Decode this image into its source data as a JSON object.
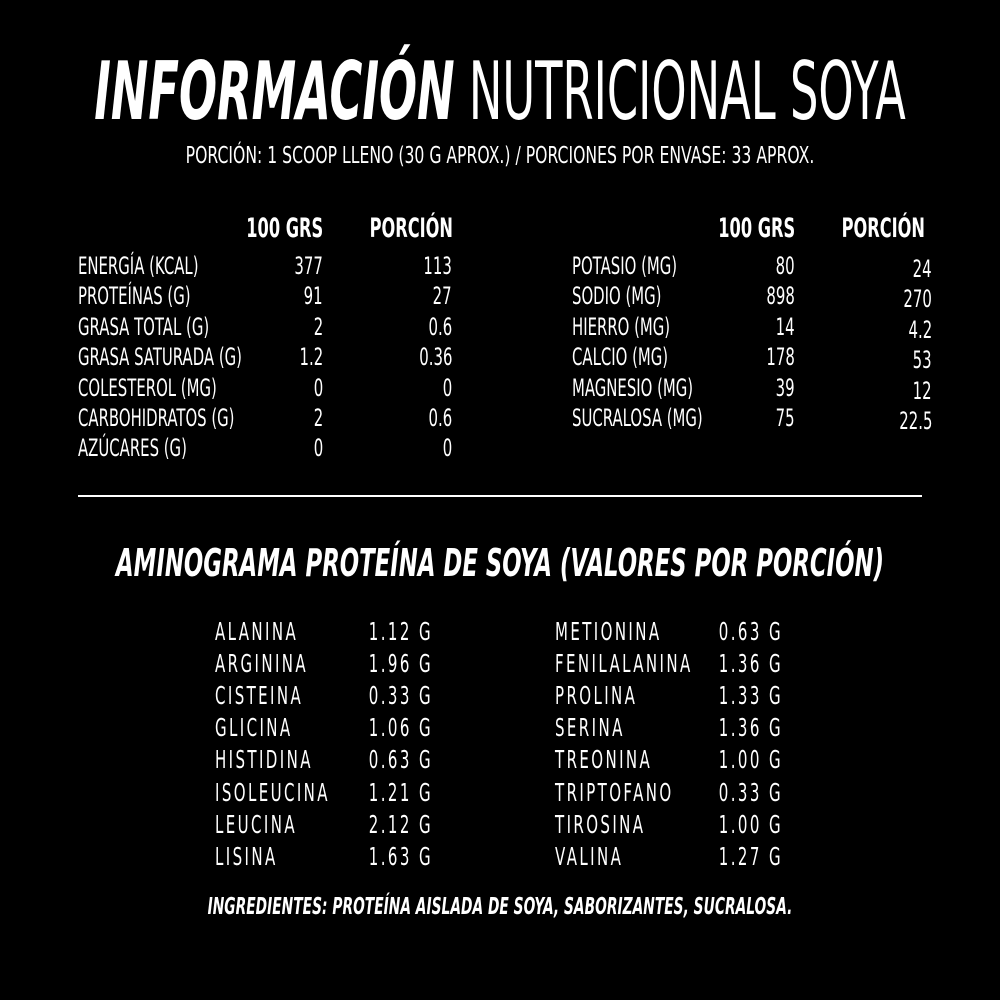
{
  "header": {
    "title_bold": "INFORMACIÓN",
    "title_rest": "NUTRICIONAL SOYA",
    "serving": "PORCIÓN: 1 SCOOP LLENO (30 G APROX.)  / PORCIONES POR ENVASE: 33 APROX."
  },
  "table_left": {
    "headers": [
      "100 GRS",
      "PORCIÓN"
    ],
    "rows": [
      [
        "ENERGÍA (KCAL)",
        "377",
        "113"
      ],
      [
        "PROTEÍNAS (G)",
        "91",
        "27"
      ],
      [
        "GRASA TOTAL (G)",
        "2",
        "0.6"
      ],
      [
        "GRASA SATURADA (G)",
        "1.2",
        "0.36"
      ],
      [
        "COLESTEROL (MG)",
        "0",
        "0"
      ],
      [
        "CARBOHIDRATOS (G)",
        "2",
        "0.6"
      ],
      [
        "AZÚCARES (G)",
        "0",
        "0"
      ]
    ]
  },
  "table_right": {
    "headers": [
      "100 GRS",
      "PORCIÓN"
    ],
    "rows": [
      [
        "POTASIO (MG)",
        "80",
        "24"
      ],
      [
        "SODIO (MG)",
        "898",
        "270"
      ],
      [
        "HIERRO (MG)",
        "14",
        "4.2"
      ],
      [
        "CALCIO (MG)",
        "178",
        "53"
      ],
      [
        "MAGNESIO (MG)",
        "39",
        "12"
      ],
      [
        "SUCRALOSA (MG)",
        "75",
        "22.5"
      ]
    ]
  },
  "aminogram": {
    "title": "AMINOGRAMA PROTEÍNA DE SOYA (VALORES POR PORCIÓN)",
    "left": [
      [
        "ALANINA",
        "1.12 G"
      ],
      [
        "ARGININA",
        "1.96 G"
      ],
      [
        "CISTEINA",
        "0.33 G"
      ],
      [
        "GLICINA",
        "1.06 G"
      ],
      [
        "HISTIDINA",
        "0.63 G"
      ],
      [
        "ISOLEUCINA",
        "1.21 G"
      ],
      [
        "LEUCINA",
        "2.12 G"
      ],
      [
        "LISINA",
        "1.63 G"
      ]
    ],
    "right": [
      [
        "METIONINA",
        "0.63 G"
      ],
      [
        "FENILALANINA",
        "1.36 G"
      ],
      [
        "PROLINA",
        "1.33 G"
      ],
      [
        "SERINA",
        "1.36 G"
      ],
      [
        "TREONINA",
        "1.00 G"
      ],
      [
        "TRIPTOFANO",
        "0.33 G"
      ],
      [
        "TIROSINA",
        "1.00 G"
      ],
      [
        "VALINA",
        "1.27 G"
      ]
    ]
  },
  "ingredients": "INGREDIENTES: PROTEÍNA AISLADA DE SOYA, SABORIZANTES, SUCRALOSA."
}
